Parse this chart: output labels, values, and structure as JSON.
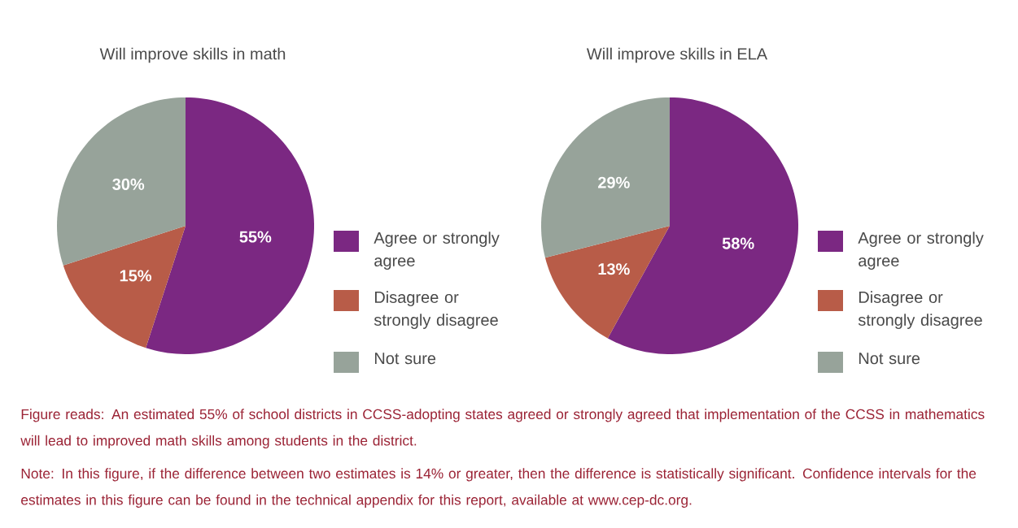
{
  "chart_data": [
    {
      "type": "pie",
      "title": "Will improve skills in math",
      "categories": [
        "Agree or strongly agree",
        "Disagree or strongly disagree",
        "Not sure"
      ],
      "values": [
        55,
        15,
        30
      ],
      "value_labels": [
        "55%",
        "15%",
        "30%"
      ],
      "colors": [
        "#7b2882",
        "#b85c48",
        "#97a39a"
      ],
      "legend": "right",
      "annotations": [
        "Figure reads: An estimated 55% of school districts in CCSS-adopting states agreed or strongly agreed that implementation of the CCSS in mathematics will lead to improved math skills among students in the district.",
        "Note: In this figure, if the difference between two estimates is 14% or greater, then the difference is statistically significant. Confidence intervals for the estimates in this figure can be found in the technical appendix for this report, available at www.cep-dc.org."
      ]
    },
    {
      "type": "pie",
      "title": "Will improve skills in ELA",
      "categories": [
        "Agree or strongly agree",
        "Disagree or strongly disagree",
        "Not sure"
      ],
      "values": [
        58,
        13,
        29
      ],
      "value_labels": [
        "58%",
        "13%",
        "29%"
      ],
      "colors": [
        "#7b2882",
        "#b85c48",
        "#97a39a"
      ],
      "legend": "right"
    }
  ]
}
